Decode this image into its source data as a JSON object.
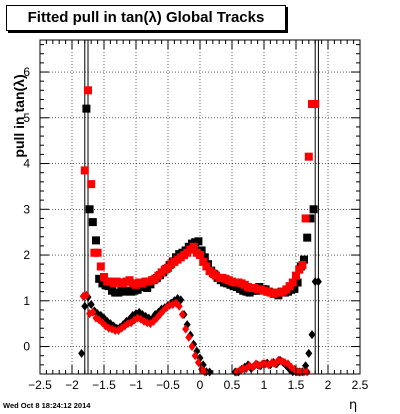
{
  "timestamp": "Wed Oct  8 18:24:12 2014",
  "chart_data": {
    "type": "scatter",
    "title": "Fitted pull in tan(λ)  Global Tracks",
    "xlabel": "η",
    "ylabel": "pull in tan(λ)",
    "xlim": [
      -2.5,
      2.5
    ],
    "ylim": [
      -0.6,
      6.7
    ],
    "xticks": [
      -2.5,
      -2,
      -1.5,
      -1,
      -0.5,
      0,
      0.5,
      1,
      1.5,
      2,
      2.5
    ],
    "xtick_labels": [
      "−2.5",
      "−2",
      "−1.5",
      "−1",
      "−0.5",
      "0",
      "0.5",
      "1",
      "1.5",
      "2",
      "2.5"
    ],
    "yticks": [
      0,
      1,
      2,
      3,
      4,
      5,
      6
    ],
    "ytick_labels": [
      "0",
      "1",
      "2",
      "3",
      "4",
      "5",
      "6"
    ],
    "grid": true,
    "series": [
      {
        "marker": "square",
        "color": "#000000",
        "x": [
          -1.775,
          -1.725,
          -1.675,
          -1.625,
          -1.575,
          -1.525,
          -1.475,
          -1.425,
          -1.375,
          -1.325,
          -1.275,
          -1.225,
          -1.175,
          -1.125,
          -1.075,
          -1.025,
          -0.975,
          -0.925,
          -0.875,
          -0.825,
          -0.775,
          -0.725,
          -0.675,
          -0.625,
          -0.575,
          -0.525,
          -0.475,
          -0.425,
          -0.375,
          -0.325,
          -0.275,
          -0.225,
          -0.175,
          -0.125,
          -0.075,
          -0.025,
          0.025,
          0.075,
          0.125,
          0.175,
          0.225,
          0.275,
          0.325,
          0.375,
          0.425,
          0.475,
          0.525,
          0.575,
          0.625,
          0.675,
          0.725,
          0.775,
          0.825,
          0.875,
          0.925,
          0.975,
          1.025,
          1.075,
          1.125,
          1.175,
          1.225,
          1.275,
          1.325,
          1.375,
          1.425,
          1.475,
          1.525,
          1.575,
          1.625,
          1.675,
          1.725,
          1.775
        ],
        "y": [
          5.2,
          3.0,
          2.72,
          2.32,
          1.48,
          1.38,
          1.34,
          1.32,
          1.22,
          1.18,
          1.18,
          1.22,
          1.2,
          1.22,
          1.2,
          1.22,
          1.24,
          1.3,
          1.3,
          1.28,
          1.36,
          1.45,
          1.5,
          1.56,
          1.62,
          1.7,
          1.78,
          1.86,
          1.95,
          2.02,
          2.05,
          2.1,
          2.18,
          2.25,
          2.28,
          2.3,
          2.1,
          1.95,
          1.8,
          1.66,
          1.58,
          1.5,
          1.45,
          1.4,
          1.38,
          1.35,
          1.32,
          1.3,
          1.26,
          1.22,
          1.2,
          1.18,
          1.22,
          1.22,
          1.3,
          1.26,
          1.25,
          1.2,
          1.18,
          1.15,
          1.12,
          1.2,
          1.18,
          1.2,
          1.24,
          1.26,
          1.4,
          1.75,
          1.9,
          2.38,
          2.8,
          3.0
        ]
      },
      {
        "marker": "square",
        "color": "#ff0000",
        "x": [
          -1.8,
          -1.75,
          -1.7,
          -1.65,
          -1.6,
          -1.55,
          -1.5,
          -1.45,
          -1.4,
          -1.35,
          -1.3,
          -1.25,
          -1.2,
          -1.15,
          -1.1,
          -1.05,
          -1.0,
          -0.95,
          -0.9,
          -0.85,
          -0.8,
          -0.75,
          -0.7,
          -0.65,
          -0.6,
          -0.55,
          -0.5,
          -0.45,
          -0.4,
          -0.35,
          -0.3,
          -0.25,
          -0.2,
          -0.15,
          -0.1,
          -0.05,
          0.0,
          0.05,
          0.1,
          0.15,
          0.2,
          0.25,
          0.3,
          0.35,
          0.4,
          0.45,
          0.5,
          0.55,
          0.6,
          0.65,
          0.7,
          0.75,
          0.8,
          0.85,
          0.9,
          0.95,
          1.0,
          1.05,
          1.1,
          1.15,
          1.2,
          1.25,
          1.3,
          1.35,
          1.4,
          1.45,
          1.5,
          1.55,
          1.6,
          1.65,
          1.7,
          1.75,
          1.8
        ],
        "y": [
          3.85,
          5.6,
          3.55,
          2.05,
          2.05,
          1.75,
          1.52,
          1.42,
          1.42,
          1.38,
          1.42,
          1.4,
          1.38,
          1.42,
          1.45,
          1.38,
          1.35,
          1.4,
          1.38,
          1.42,
          1.42,
          1.45,
          1.48,
          1.55,
          1.62,
          1.68,
          1.72,
          1.8,
          1.85,
          1.9,
          1.95,
          2.0,
          2.05,
          2.12,
          2.18,
          2.05,
          2.0,
          1.85,
          1.75,
          1.65,
          1.6,
          1.55,
          1.5,
          1.5,
          1.48,
          1.45,
          1.42,
          1.4,
          1.4,
          1.38,
          1.35,
          1.3,
          1.28,
          1.28,
          1.25,
          1.25,
          1.22,
          1.2,
          1.18,
          1.15,
          1.18,
          1.18,
          1.2,
          1.25,
          1.32,
          1.4,
          1.55,
          1.68,
          1.78,
          2.8,
          4.15,
          5.3,
          5.3
        ]
      },
      {
        "marker": "diamond",
        "color": "#000000",
        "x": [
          -1.85,
          -1.8,
          -1.75,
          -1.7,
          -1.65,
          -1.6,
          -1.55,
          -1.5,
          -1.45,
          -1.4,
          -1.35,
          -1.3,
          -1.25,
          -1.2,
          -1.15,
          -1.1,
          -1.05,
          -1.0,
          -0.95,
          -0.9,
          -0.85,
          -0.8,
          -0.75,
          -0.7,
          -0.65,
          -0.6,
          -0.55,
          -0.5,
          -0.45,
          -0.4,
          -0.35,
          -0.3,
          -0.25,
          -0.2,
          -0.15,
          -0.1,
          -0.05,
          0.0,
          0.05,
          0.1,
          0.15,
          0.55,
          0.6,
          0.65,
          0.7,
          0.75,
          0.8,
          0.85,
          0.9,
          0.95,
          1.0,
          1.05,
          1.1,
          1.15,
          1.2,
          1.25,
          1.3,
          1.35,
          1.4,
          1.45,
          1.5,
          1.55,
          1.6,
          1.65,
          1.7,
          1.75,
          1.8,
          1.85
        ],
        "y": [
          -0.15,
          0.88,
          1.08,
          0.92,
          0.78,
          0.72,
          0.68,
          0.62,
          0.55,
          0.5,
          0.45,
          0.4,
          0.42,
          0.48,
          0.55,
          0.6,
          0.68,
          0.72,
          0.75,
          0.7,
          0.66,
          0.62,
          0.6,
          0.7,
          0.75,
          0.82,
          0.85,
          0.9,
          0.95,
          1.0,
          1.05,
          1.02,
          0.7,
          0.48,
          0.25,
          0.05,
          -0.1,
          -0.25,
          -0.4,
          -0.55,
          -0.7,
          -0.6,
          -0.58,
          -0.5,
          -0.45,
          -0.4,
          -0.48,
          -0.42,
          -0.4,
          -0.42,
          -0.38,
          -0.36,
          -0.4,
          -0.35,
          -0.38,
          -0.3,
          -0.35,
          -0.42,
          -0.5,
          -0.55,
          -0.6,
          -0.62,
          -0.55,
          -0.42,
          -0.15,
          0.26,
          1.42,
          1.42
        ]
      },
      {
        "marker": "diamond",
        "color": "#ff0000",
        "x": [
          -1.825,
          -1.775,
          -1.725,
          -1.675,
          -1.625,
          -1.575,
          -1.525,
          -1.475,
          -1.425,
          -1.375,
          -1.325,
          -1.275,
          -1.225,
          -1.175,
          -1.125,
          -1.075,
          -1.025,
          -0.975,
          -0.925,
          -0.875,
          -0.825,
          -0.775,
          -0.725,
          -0.675,
          -0.625,
          -0.575,
          -0.525,
          -0.475,
          -0.425,
          -0.375,
          -0.325,
          -0.275,
          -0.225,
          -0.175,
          -0.125,
          -0.075,
          -0.025,
          0.025,
          0.075,
          0.575,
          0.625,
          0.675,
          0.725,
          0.775,
          0.825,
          0.875,
          0.925,
          0.975,
          1.025,
          1.075,
          1.125,
          1.175,
          1.225,
          1.275,
          1.325,
          1.375,
          1.425,
          1.475,
          1.525,
          1.575,
          1.625,
          1.675
        ],
        "y": [
          1.1,
          1.12,
          0.72,
          0.75,
          0.62,
          0.58,
          0.52,
          0.45,
          0.4,
          0.38,
          0.35,
          0.35,
          0.4,
          0.45,
          0.5,
          0.52,
          0.58,
          0.62,
          0.6,
          0.55,
          0.52,
          0.5,
          0.55,
          0.62,
          0.7,
          0.78,
          0.85,
          0.9,
          0.92,
          0.95,
          0.88,
          0.7,
          0.38,
          0.2,
          0.0,
          -0.2,
          -0.35,
          -0.5,
          -0.62,
          -0.58,
          -0.52,
          -0.48,
          -0.48,
          -0.42,
          -0.45,
          -0.38,
          -0.42,
          -0.38,
          -0.38,
          -0.4,
          -0.35,
          -0.38,
          -0.3,
          -0.32,
          -0.35,
          -0.38,
          -0.45,
          -0.5,
          -0.55,
          -0.6,
          -0.62,
          -0.58
        ]
      }
    ]
  }
}
